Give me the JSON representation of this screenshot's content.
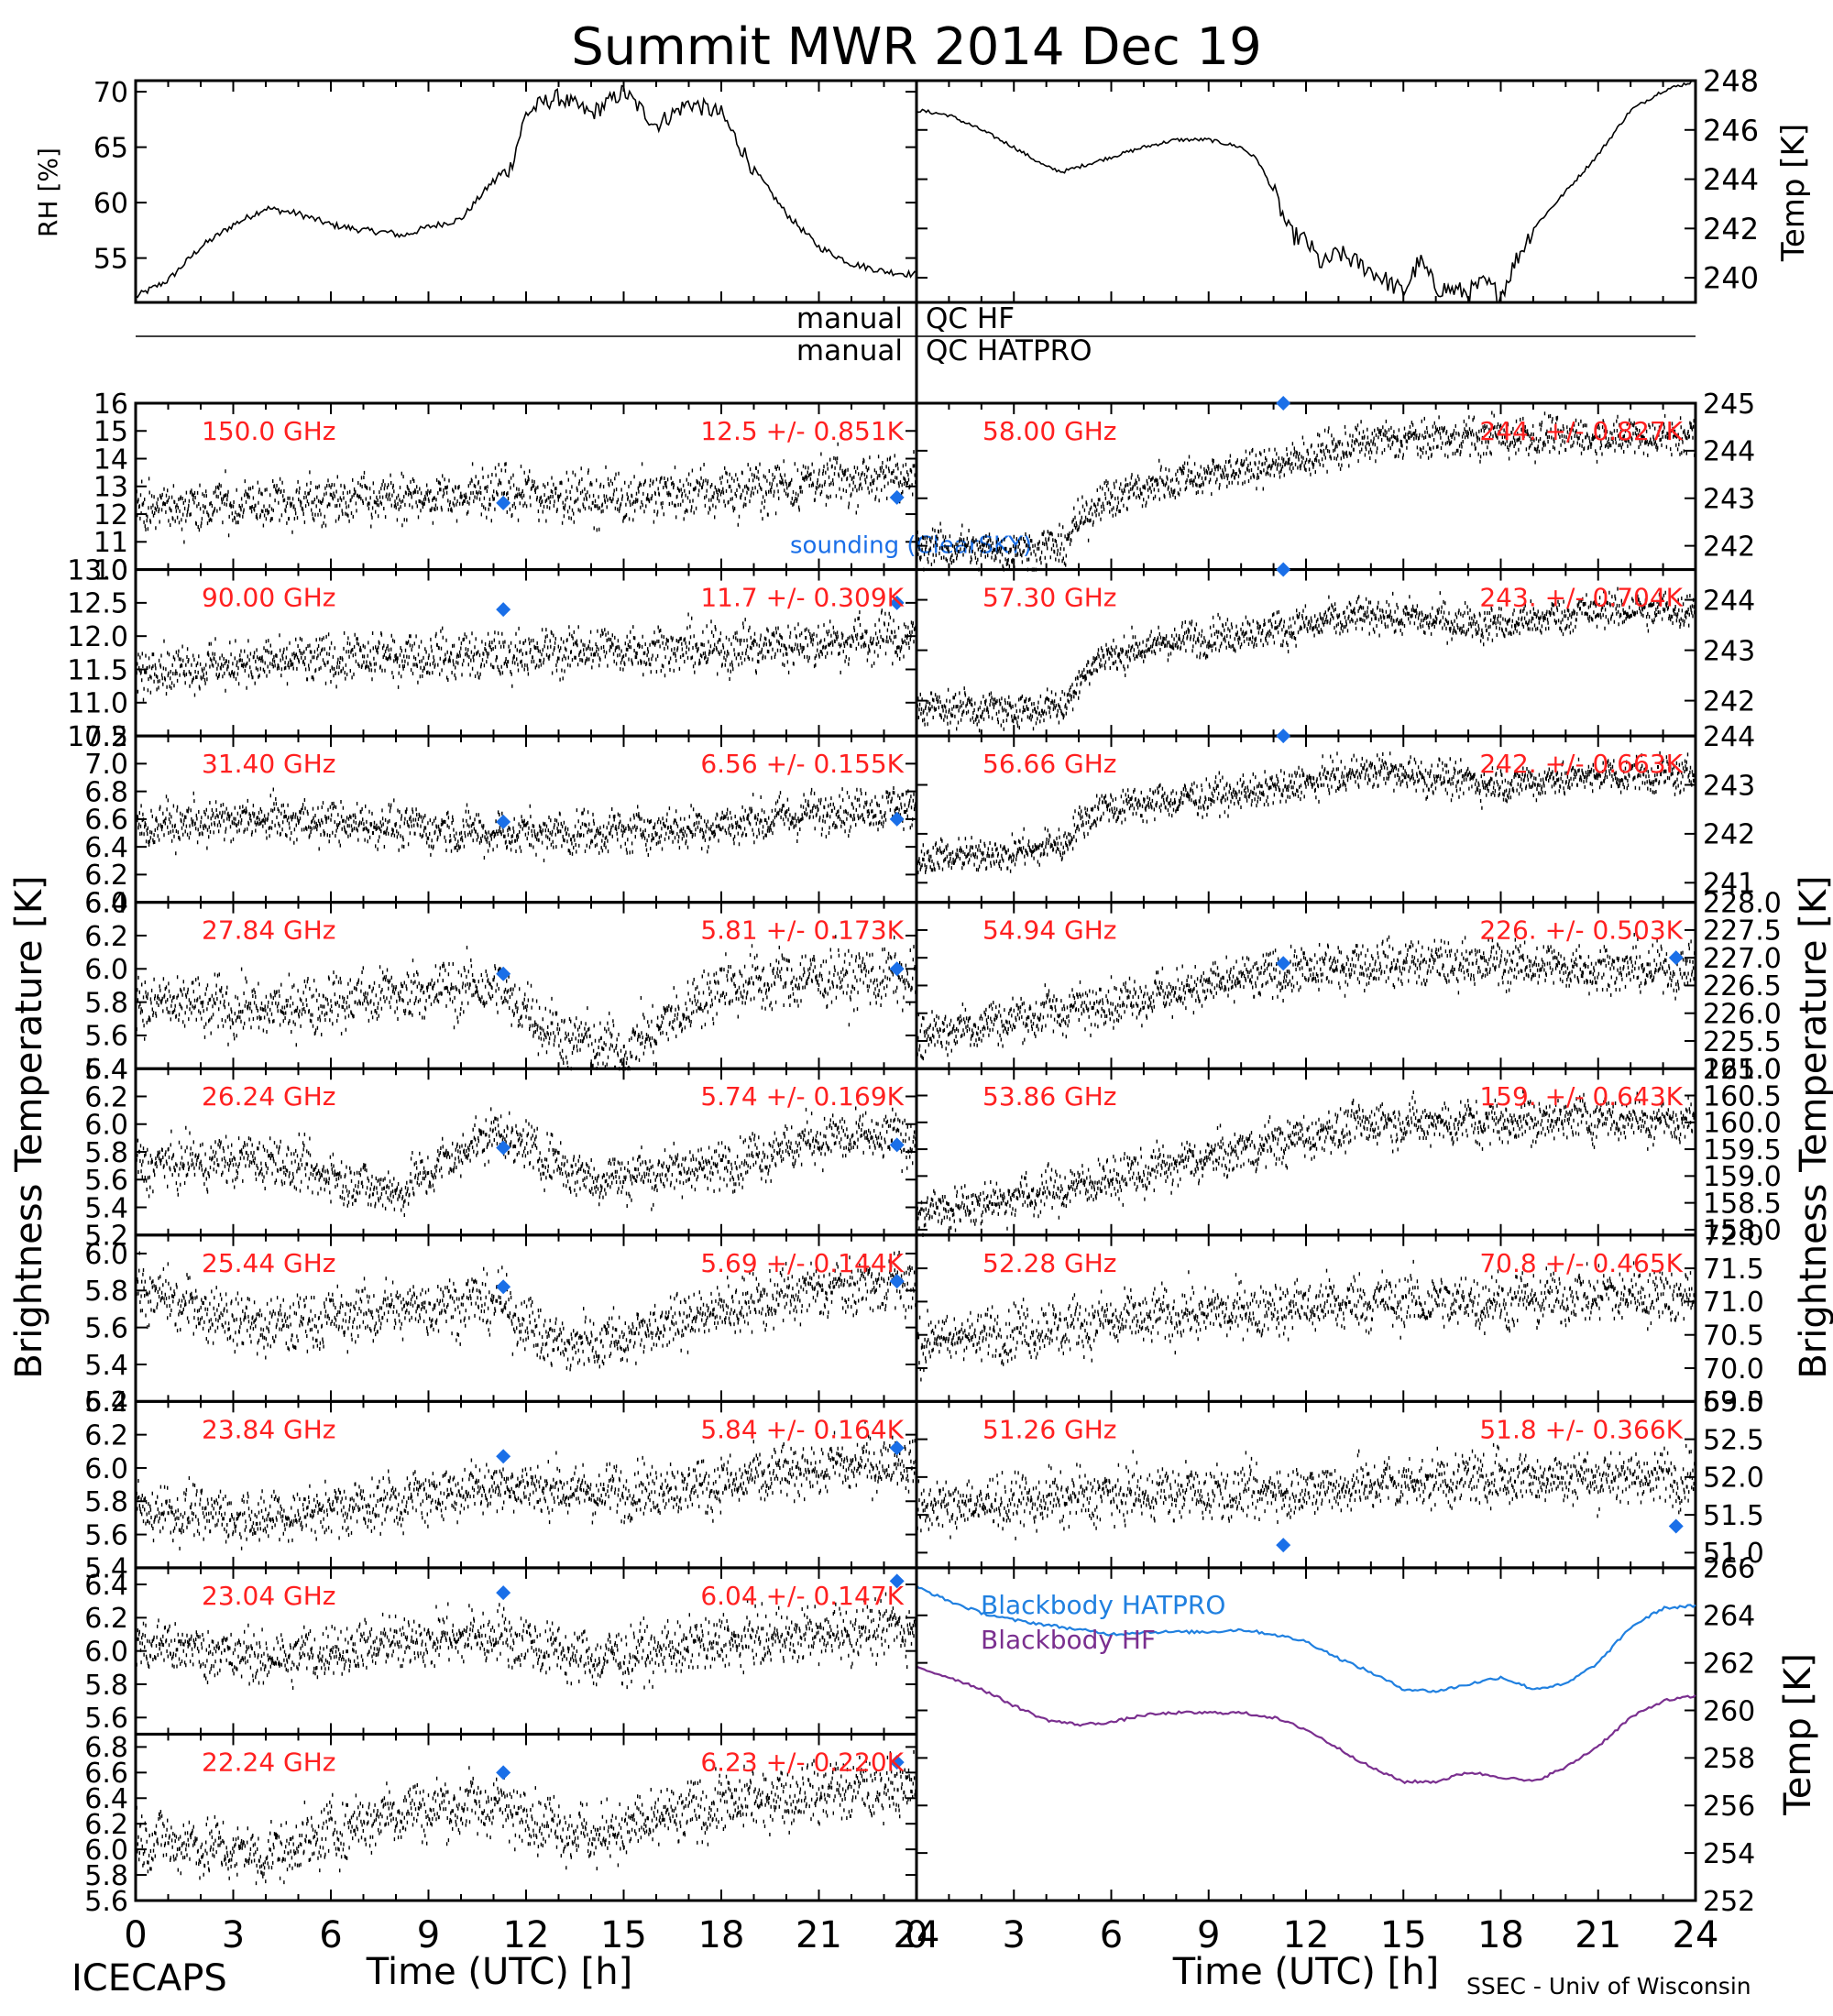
{
  "title": "Summit MWR 2014 Dec 19",
  "footer": {
    "left": "ICECAPS",
    "right": "SSEC - Univ of Wisconsin"
  },
  "xaxis": {
    "label": "Time (UTC) [h]",
    "ticks": [
      "0",
      "3",
      "6",
      "9",
      "12",
      "15",
      "18",
      "21",
      "24"
    ],
    "range": [
      0,
      24
    ]
  },
  "side_labels": {
    "left": "Brightness Temperature [K]",
    "right": "Brightness Temperature [K]",
    "right_bottom": "Temp [K]"
  },
  "qc": {
    "label_left_1": "manual",
    "label_right_1": "QC HF",
    "label_left_2": "manual",
    "label_right_2": "QC HATPRO"
  },
  "colors": {
    "data": "#000000",
    "label": "#ff2020",
    "sounding": "#1a6fe8",
    "hatpro": "#2080e0",
    "hf": "#7a2f8f"
  },
  "chart_data": [
    {
      "type": "line",
      "id": "rh",
      "ylabel": "RH [%]",
      "ylim": [
        51,
        71
      ],
      "yticks": [
        "55",
        "60",
        "65",
        "70"
      ],
      "x_range": [
        0,
        24
      ],
      "series": [
        {
          "x": [
            0,
            1,
            2,
            3,
            4,
            5,
            6,
            7,
            7.8,
            8.2,
            9,
            10,
            11,
            11.5,
            12,
            12.5,
            13,
            14,
            15,
            16,
            17,
            18,
            19,
            20,
            21,
            22,
            23,
            24
          ],
          "y": [
            51.5,
            53,
            56,
            58,
            59.5,
            59,
            58,
            57.5,
            57.3,
            57,
            57.8,
            58.5,
            62,
            63,
            68,
            69,
            69.5,
            68,
            70,
            67,
            69,
            68,
            63,
            59,
            56,
            54.5,
            53.8,
            53.5
          ]
        }
      ]
    },
    {
      "type": "line",
      "id": "temp",
      "ylabel": "Temp [K]",
      "ylim": [
        239,
        248
      ],
      "yticks": [
        "240",
        "242",
        "244",
        "246",
        "248"
      ],
      "x_range": [
        0,
        24
      ],
      "series": [
        {
          "x": [
            0,
            1,
            2,
            3,
            4,
            4.5,
            5,
            6,
            7,
            8,
            9,
            10,
            10.5,
            11,
            11.5,
            12,
            12.5,
            13,
            14,
            15,
            15.5,
            16,
            16.5,
            17,
            17.5,
            18,
            18.5,
            19,
            20,
            21,
            22,
            23,
            24
          ],
          "y": [
            246.8,
            246.6,
            246,
            245.3,
            244.5,
            244.3,
            244.5,
            244.9,
            245.3,
            245.6,
            245.6,
            245.3,
            244.8,
            243.5,
            241.8,
            241.5,
            240.5,
            241,
            240.3,
            239.4,
            240.7,
            239.6,
            239.5,
            239.4,
            239.8,
            239.3,
            240.8,
            242,
            243.5,
            245,
            246.8,
            247.6,
            248
          ]
        }
      ]
    },
    {
      "type": "scatter",
      "id": "l0",
      "freq": "150.0 GHz",
      "stat": "12.5 +/- 0.851K",
      "ylim": [
        10,
        16
      ],
      "yticks": [
        "10",
        "11",
        "12",
        "13",
        "14",
        "15",
        "16"
      ],
      "trend": {
        "x": [
          0,
          4,
          8,
          11,
          14,
          18,
          21,
          24
        ],
        "y": [
          12.2,
          12.4,
          12.5,
          12.8,
          12.6,
          12.8,
          13.2,
          13.4
        ]
      },
      "noise": 0.75,
      "sounding": [
        {
          "x": 11.3,
          "y": 12.4
        },
        {
          "x": 23.4,
          "y": 12.6
        }
      ],
      "legend": "sounding (ClearSKY)"
    },
    {
      "type": "scatter",
      "id": "l1",
      "freq": "90.00 GHz",
      "stat": "11.7 +/- 0.309K",
      "ylim": [
        10.5,
        13
      ],
      "yticks": [
        "10.5",
        "11.0",
        "11.5",
        "12.0",
        "12.5",
        "13.0"
      ],
      "trend": {
        "x": [
          0,
          4,
          8,
          11,
          14,
          18,
          21,
          24
        ],
        "y": [
          11.5,
          11.6,
          11.7,
          11.7,
          11.8,
          11.8,
          11.9,
          12.0
        ]
      },
      "noise": 0.3,
      "sounding": [
        {
          "x": 11.3,
          "y": 12.4
        },
        {
          "x": 23.4,
          "y": 12.5
        }
      ]
    },
    {
      "type": "scatter",
      "id": "l2",
      "freq": "31.40 GHz",
      "stat": "6.56 +/- 0.155K",
      "ylim": [
        6.0,
        7.2
      ],
      "yticks": [
        "6.0",
        "6.2",
        "6.4",
        "6.6",
        "6.8",
        "7.0",
        "7.2"
      ],
      "trend": {
        "x": [
          0,
          4,
          8,
          11,
          14,
          18,
          21,
          24
        ],
        "y": [
          6.55,
          6.6,
          6.55,
          6.5,
          6.5,
          6.55,
          6.65,
          6.7
        ]
      },
      "noise": 0.13,
      "sounding": [
        {
          "x": 11.3,
          "y": 6.58
        },
        {
          "x": 23.4,
          "y": 6.6
        }
      ]
    },
    {
      "type": "scatter",
      "id": "l3",
      "freq": "27.84 GHz",
      "stat": "5.81 +/- 0.173K",
      "ylim": [
        5.4,
        6.4
      ],
      "yticks": [
        "5.4",
        "5.6",
        "5.8",
        "6.0",
        "6.2",
        "6.4"
      ],
      "trend": {
        "x": [
          0,
          4,
          8,
          11,
          13,
          15,
          18,
          21,
          24
        ],
        "y": [
          5.8,
          5.75,
          5.85,
          5.9,
          5.6,
          5.5,
          5.9,
          5.95,
          5.95
        ]
      },
      "noise": 0.15,
      "sounding": [
        {
          "x": 11.3,
          "y": 5.97
        },
        {
          "x": 23.4,
          "y": 6.0
        }
      ]
    },
    {
      "type": "scatter",
      "id": "l4",
      "freq": "26.24 GHz",
      "stat": "5.74 +/- 0.169K",
      "ylim": [
        5.2,
        6.4
      ],
      "yticks": [
        "5.2",
        "5.4",
        "5.6",
        "5.8",
        "6.0",
        "6.2",
        "6.4"
      ],
      "trend": {
        "x": [
          0,
          4,
          8,
          11,
          14,
          18,
          21,
          24
        ],
        "y": [
          5.7,
          5.75,
          5.5,
          5.95,
          5.6,
          5.7,
          5.9,
          5.9
        ]
      },
      "noise": 0.15,
      "sounding": [
        {
          "x": 11.3,
          "y": 5.83
        },
        {
          "x": 23.4,
          "y": 5.85
        }
      ]
    },
    {
      "type": "scatter",
      "id": "l5",
      "freq": "25.44 GHz",
      "stat": "5.69 +/- 0.144K",
      "ylim": [
        5.2,
        6.1
      ],
      "yticks": [
        "5.2",
        "5.4",
        "5.6",
        "5.8",
        "6.0"
      ],
      "trend": {
        "x": [
          0,
          4,
          8,
          11,
          13,
          15,
          18,
          21,
          24
        ],
        "y": [
          5.8,
          5.6,
          5.7,
          5.75,
          5.5,
          5.55,
          5.7,
          5.8,
          5.85
        ]
      },
      "noise": 0.13,
      "sounding": [
        {
          "x": 11.3,
          "y": 5.82
        },
        {
          "x": 23.4,
          "y": 5.85
        }
      ]
    },
    {
      "type": "scatter",
      "id": "l6",
      "freq": "23.84 GHz",
      "stat": "5.84 +/- 0.164K",
      "ylim": [
        5.4,
        6.4
      ],
      "yticks": [
        "5.4",
        "5.6",
        "5.8",
        "6.0",
        "6.2",
        "6.4"
      ],
      "trend": {
        "x": [
          0,
          4,
          8,
          11,
          14,
          18,
          21,
          24
        ],
        "y": [
          5.75,
          5.7,
          5.8,
          5.9,
          5.85,
          5.9,
          6.0,
          6.05
        ]
      },
      "noise": 0.14,
      "sounding": [
        {
          "x": 11.3,
          "y": 6.07
        },
        {
          "x": 23.4,
          "y": 6.12
        }
      ]
    },
    {
      "type": "scatter",
      "id": "l7",
      "freq": "23.04 GHz",
      "stat": "6.04 +/- 0.147K",
      "ylim": [
        5.5,
        6.5
      ],
      "yticks": [
        "5.6",
        "5.8",
        "6.0",
        "6.2",
        "6.4"
      ],
      "trend": {
        "x": [
          0,
          4,
          8,
          11,
          14,
          18,
          21,
          24
        ],
        "y": [
          6.05,
          5.95,
          6.05,
          6.1,
          5.95,
          6.05,
          6.1,
          6.15
        ]
      },
      "noise": 0.14,
      "sounding": [
        {
          "x": 11.3,
          "y": 6.35
        },
        {
          "x": 23.4,
          "y": 6.42
        }
      ]
    },
    {
      "type": "scatter",
      "id": "l8",
      "freq": "22.24 GHz",
      "stat": "6.23 +/- 0.220K",
      "ylim": [
        5.6,
        6.9
      ],
      "yticks": [
        "5.6",
        "5.8",
        "6.0",
        "6.2",
        "6.4",
        "6.6",
        "6.8"
      ],
      "trend": {
        "x": [
          0,
          4,
          8,
          11,
          14,
          18,
          21,
          24
        ],
        "y": [
          6.1,
          5.95,
          6.3,
          6.35,
          6.1,
          6.35,
          6.45,
          6.5
        ]
      },
      "noise": 0.2,
      "sounding": [
        {
          "x": 11.3,
          "y": 6.6
        },
        {
          "x": 23.4,
          "y": 6.68
        }
      ]
    },
    {
      "type": "scatter",
      "id": "r0",
      "freq": "58.00 GHz",
      "stat": "244. +/- 0.827K",
      "ylim": [
        241.5,
        245
      ],
      "yticks": [
        "242",
        "243",
        "244",
        "245"
      ],
      "trend": {
        "x": [
          0,
          3,
          4.5,
          5.5,
          8,
          11,
          14,
          18,
          21,
          24
        ],
        "y": [
          242.0,
          241.9,
          242.0,
          242.9,
          243.4,
          243.7,
          244.2,
          244.3,
          244.3,
          244.3
        ]
      },
      "noise": 0.35,
      "sounding": [
        {
          "x": 11.3,
          "y": 245.0
        }
      ]
    },
    {
      "type": "scatter",
      "id": "r1",
      "freq": "57.30 GHz",
      "stat": "243. +/- 0.704K",
      "ylim": [
        241.3,
        244.6
      ],
      "yticks": [
        "242",
        "243",
        "244"
      ],
      "trend": {
        "x": [
          0,
          3,
          4.5,
          5.5,
          8,
          11,
          14,
          18,
          21,
          24
        ],
        "y": [
          241.9,
          241.8,
          241.9,
          242.8,
          243.2,
          243.4,
          243.7,
          243.5,
          243.8,
          243.8
        ]
      },
      "noise": 0.3,
      "sounding": [
        {
          "x": 11.3,
          "y": 244.6
        }
      ]
    },
    {
      "type": "scatter",
      "id": "r2",
      "freq": "56.66 GHz",
      "stat": "242. +/- 0.663K",
      "ylim": [
        240.6,
        244
      ],
      "yticks": [
        "241",
        "242",
        "243",
        "244"
      ],
      "trend": {
        "x": [
          0,
          3,
          4.5,
          5.5,
          8,
          11,
          14,
          18,
          21,
          24
        ],
        "y": [
          241.5,
          241.6,
          241.8,
          242.5,
          242.7,
          242.9,
          243.3,
          243.0,
          243.2,
          243.2
        ]
      },
      "noise": 0.3,
      "sounding": [
        {
          "x": 11.3,
          "y": 244.0
        }
      ]
    },
    {
      "type": "scatter",
      "id": "r3",
      "freq": "54.94 GHz",
      "stat": "226. +/- 0.503K",
      "ylim": [
        225,
        228
      ],
      "yticks": [
        "225.0",
        "225.5",
        "226.0",
        "226.5",
        "227.0",
        "227.5",
        "228.0"
      ],
      "trend": {
        "x": [
          0,
          4,
          8,
          11,
          14,
          18,
          21,
          24
        ],
        "y": [
          225.6,
          226.0,
          226.4,
          226.7,
          226.9,
          226.9,
          226.8,
          226.8
        ]
      },
      "noise": 0.35,
      "sounding": [
        {
          "x": 11.3,
          "y": 226.9
        },
        {
          "x": 23.4,
          "y": 227.0
        }
      ]
    },
    {
      "type": "scatter",
      "id": "r4",
      "freq": "53.86 GHz",
      "stat": "159. +/- 0.643K",
      "ylim": [
        157.9,
        161
      ],
      "yticks": [
        "158.0",
        "158.5",
        "159.0",
        "159.5",
        "160.0",
        "160.5",
        "161.0"
      ],
      "trend": {
        "x": [
          0,
          4,
          8,
          11,
          14,
          18,
          21,
          24
        ],
        "y": [
          158.3,
          158.7,
          159.2,
          159.6,
          160.0,
          160.0,
          160.1,
          160.0
        ]
      },
      "noise": 0.35,
      "sounding": []
    },
    {
      "type": "scatter",
      "id": "r5",
      "freq": "52.28 GHz",
      "stat": "70.8 +/- 0.465K",
      "ylim": [
        69.5,
        72
      ],
      "yticks": [
        "69.5",
        "70.0",
        "70.5",
        "71.0",
        "71.5",
        "72.0"
      ],
      "trend": {
        "x": [
          0,
          4,
          8,
          11,
          14,
          18,
          21,
          24
        ],
        "y": [
          70.4,
          70.6,
          70.8,
          70.9,
          71.0,
          71.0,
          71.1,
          71.1
        ]
      },
      "noise": 0.35,
      "sounding": []
    },
    {
      "type": "scatter",
      "id": "r6",
      "freq": "51.26 GHz",
      "stat": "51.8 +/- 0.366K",
      "ylim": [
        50.8,
        53
      ],
      "yticks": [
        "51.0",
        "51.5",
        "52.0",
        "52.5",
        "53.0"
      ],
      "trend": {
        "x": [
          0,
          4,
          8,
          11,
          14,
          18,
          21,
          24
        ],
        "y": [
          51.6,
          51.7,
          51.8,
          51.8,
          51.9,
          52.0,
          52.0,
          52.0
        ]
      },
      "noise": 0.3,
      "sounding": [
        {
          "x": 11.3,
          "y": 51.1
        },
        {
          "x": 23.4,
          "y": 51.35
        }
      ]
    },
    {
      "type": "line",
      "id": "bb",
      "ylabel": "Temp [K]",
      "ylim": [
        252,
        266
      ],
      "yticks": [
        "252",
        "254",
        "256",
        "258",
        "260",
        "262",
        "264",
        "266"
      ],
      "x_range": [
        0,
        24
      ],
      "legend": [
        "Blackbody HATPRO",
        "Blackbody HF"
      ],
      "series": [
        {
          "name": "Blackbody HATPRO",
          "x": [
            0,
            1,
            2,
            3,
            4,
            5,
            6,
            7,
            8,
            9,
            10,
            11,
            12,
            13,
            14,
            15,
            16,
            17,
            18,
            19,
            20,
            21,
            22,
            23,
            24
          ],
          "y": [
            265.2,
            264.6,
            264.1,
            263.8,
            263.6,
            263.4,
            263.2,
            263.3,
            263.3,
            263.3,
            263.4,
            263.2,
            262.9,
            262.2,
            261.6,
            260.9,
            260.8,
            261.1,
            261.4,
            260.9,
            261.1,
            262.0,
            263.5,
            264.3,
            264.4
          ]
        },
        {
          "name": "Blackbody HF",
          "x": [
            0,
            1,
            2,
            3,
            4,
            5,
            6,
            7,
            8,
            9,
            10,
            11,
            12,
            13,
            14,
            15,
            16,
            17,
            18,
            19,
            20,
            21,
            22,
            23,
            24
          ],
          "y": [
            261.8,
            261.4,
            260.9,
            260.2,
            259.6,
            259.4,
            259.5,
            259.8,
            259.9,
            259.9,
            259.9,
            259.7,
            259.2,
            258.4,
            257.6,
            257.0,
            257.0,
            257.4,
            257.2,
            257.0,
            257.6,
            258.5,
            259.7,
            260.4,
            260.6
          ]
        }
      ]
    }
  ]
}
